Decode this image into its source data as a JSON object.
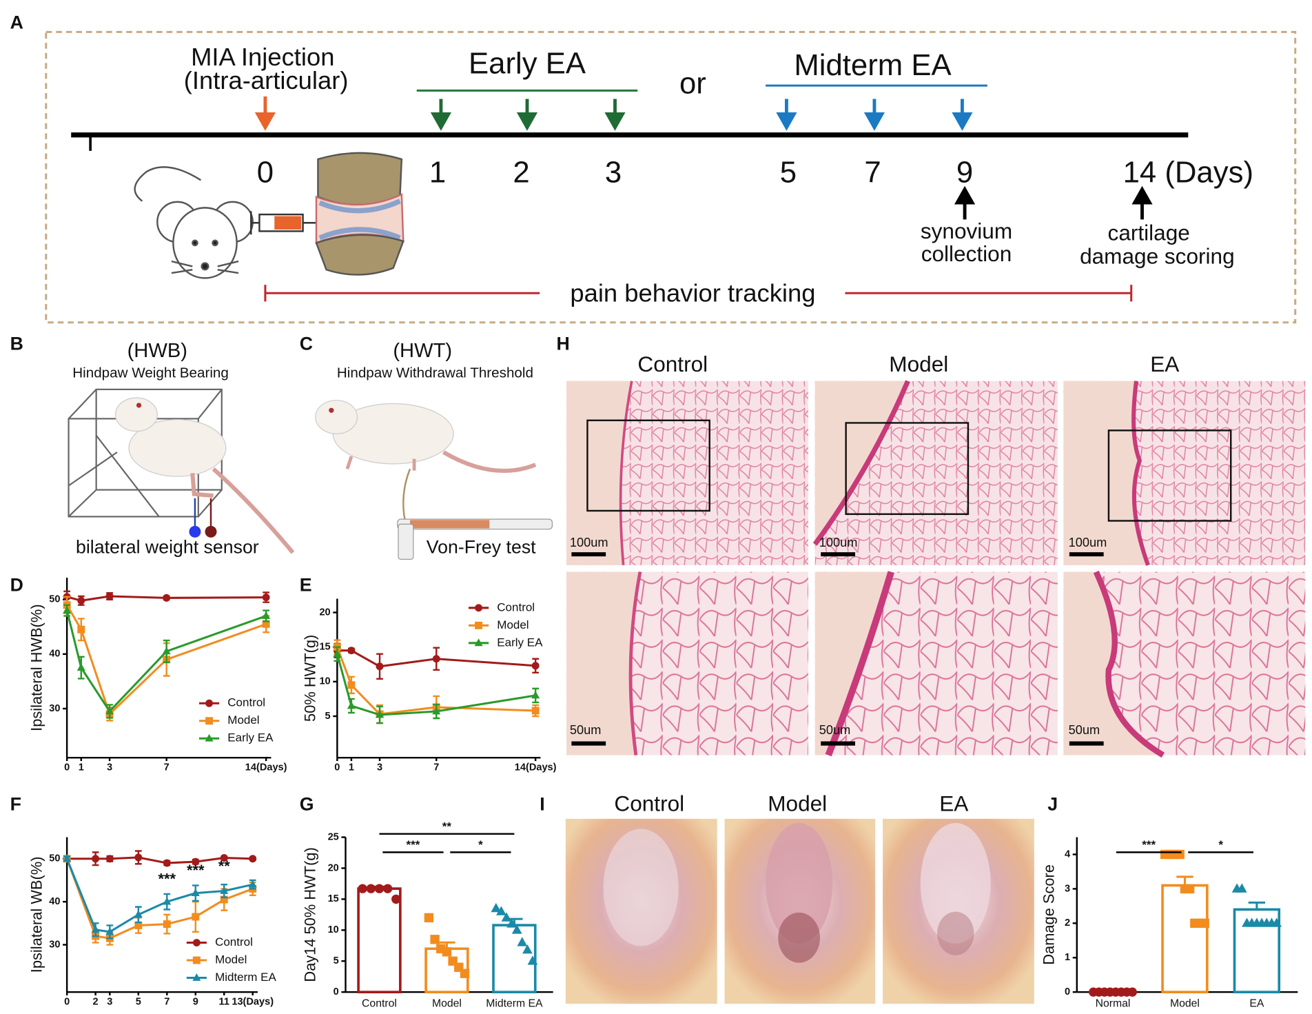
{
  "panel_labels": [
    "A",
    "B",
    "C",
    "D",
    "E",
    "F",
    "G",
    "H",
    "I",
    "J"
  ],
  "timeline": {
    "injection": [
      "MIA Injection",
      "(Intra-articular)"
    ],
    "early": "Early EA",
    "or": "or",
    "midterm": "Midterm EA",
    "days": [
      "0",
      "1",
      "2",
      "3",
      "5",
      "7",
      "9",
      "14 (Days)"
    ],
    "synovium": [
      "synovium",
      "collection"
    ],
    "cartilage": [
      "cartilage",
      "damage scoring"
    ],
    "tracking": "pain behavior tracking"
  },
  "hwb": {
    "abbr": "(HWB)",
    "name": "Hindpaw Weight Bearing",
    "caption": "bilateral weight  sensor"
  },
  "hwt": {
    "abbr": "(HWT)",
    "name": "Hindpaw Withdrawal Threshold",
    "caption": "Von-Frey test"
  },
  "histology": {
    "columns": [
      "Control",
      "Model",
      "EA"
    ],
    "scale_bars": [
      "100um",
      "50um"
    ]
  },
  "photos": {
    "columns": [
      "Control",
      "Model",
      "EA"
    ]
  },
  "chart_data": [
    {
      "type": "line",
      "ylabel": "Ipsilateral HWB(%)",
      "x": [
        0,
        1,
        3,
        7,
        14
      ],
      "xlim": [
        0,
        14
      ],
      "xticks": [
        0,
        1,
        3,
        7,
        {
          "value": 14,
          "label": "14(Days)"
        }
      ],
      "ylim": [
        21,
        54
      ],
      "yticks": [
        30,
        40,
        50
      ],
      "legend": "lower right",
      "series": [
        {
          "name": "Control",
          "color": "#a31a1a",
          "values": [
            50.5,
            49.8,
            50.6,
            50.3,
            50.4
          ],
          "errors": [
            1,
            0.8,
            0.6,
            0.3,
            0.9
          ]
        },
        {
          "name": "Model",
          "color": "#f28c1e",
          "values": [
            49,
            44.5,
            29,
            39,
            45.5
          ],
          "errors": [
            1.5,
            2,
            1.2,
            3,
            1.5
          ]
        },
        {
          "name": "Early EA",
          "color": "#2a9a2a",
          "values": [
            48,
            37.5,
            29.5,
            40.5,
            47
          ],
          "errors": [
            1,
            2,
            1.2,
            2,
            1
          ]
        }
      ]
    },
    {
      "type": "line",
      "ylabel": "50% HWT(g)",
      "x": [
        0,
        1,
        3,
        7,
        14
      ],
      "xlim": [
        0,
        14
      ],
      "xticks": [
        0,
        1,
        3,
        7,
        {
          "value": 14,
          "label": "14(Days)"
        }
      ],
      "ylim": [
        -1,
        22
      ],
      "yticks": [
        5,
        10,
        15,
        20
      ],
      "legend": "upper right",
      "series": [
        {
          "name": "Control",
          "color": "#a31a1a",
          "values": [
            14.5,
            14.5,
            12.2,
            13.3,
            12.3
          ],
          "errors": [
            1,
            0.3,
            1.8,
            1.6,
            1
          ]
        },
        {
          "name": "Model",
          "color": "#f28c1e",
          "values": [
            15,
            9.5,
            5.3,
            6.3,
            5.8
          ],
          "errors": [
            1,
            1.2,
            1.3,
            1.6,
            0.8
          ]
        },
        {
          "name": "Early EA",
          "color": "#2a9a2a",
          "values": [
            14,
            6.5,
            5.2,
            5.7,
            8
          ],
          "errors": [
            1,
            1,
            1.2,
            1,
            1
          ]
        }
      ]
    },
    {
      "type": "line",
      "ylabel": "Ipsilateral WB(%)",
      "x": [
        0,
        2,
        3,
        5,
        7,
        9,
        11,
        13
      ],
      "xlim": [
        0,
        13
      ],
      "xticks": [
        0,
        2,
        3,
        5,
        7,
        9,
        11,
        {
          "value": 13,
          "label": "13(Days)"
        }
      ],
      "ylim": [
        19,
        55
      ],
      "yticks": [
        30,
        40,
        50
      ],
      "legend": "lower right",
      "series": [
        {
          "name": "Control",
          "color": "#a31a1a",
          "values": [
            50,
            50,
            50,
            50.3,
            49,
            49.3,
            50.2,
            50
          ],
          "errors": [
            0.5,
            1.5,
            0.6,
            1.5,
            0.5,
            0.5,
            0.3,
            0.3
          ]
        },
        {
          "name": "Model",
          "color": "#f28c1e",
          "values": [
            50,
            32,
            31.5,
            34.5,
            34.8,
            36.5,
            40.5,
            43
          ],
          "errors": [
            0.5,
            1.5,
            1.5,
            1.8,
            2.2,
            3.5,
            2.5,
            1.5
          ]
        },
        {
          "name": "Midterm EA",
          "color": "#1a8aa8",
          "values": [
            50,
            33.5,
            33,
            37,
            40,
            42,
            42.5,
            44
          ],
          "errors": [
            0.5,
            1.5,
            1.5,
            1.8,
            1.8,
            1.8,
            1.5,
            1
          ]
        }
      ],
      "annotations": [
        {
          "x": 7,
          "y": 45,
          "text": "***"
        },
        {
          "x": 9,
          "y": 47,
          "text": "***"
        },
        {
          "x": 11,
          "y": 48,
          "text": "**"
        }
      ]
    },
    {
      "type": "bar",
      "ylabel": "Day14 50% HWT(g)",
      "categories": [
        "Control",
        "Model",
        "Midterm EA"
      ],
      "values": [
        16.7,
        7,
        10.8
      ],
      "errors": [
        0.3,
        1,
        1
      ],
      "colors": [
        "#a31a1a",
        "#f28c1e",
        "#1a8aa8"
      ],
      "points": [
        [
          16.7,
          16.7,
          16.7,
          16.7,
          15
        ],
        [
          12,
          8.5,
          7,
          6.5,
          5,
          4,
          3
        ],
        [
          13.5,
          13,
          12,
          11,
          10,
          8,
          6.8,
          5
        ]
      ],
      "ylim": [
        0,
        25
      ],
      "yticks": [
        0,
        5,
        10,
        15,
        20,
        25
      ],
      "brackets": [
        {
          "from": 0,
          "to": 1,
          "text": "***"
        },
        {
          "from": 1,
          "to": 2,
          "text": "*"
        },
        {
          "from": 0,
          "to": 2,
          "text": "**"
        }
      ]
    },
    {
      "type": "bar",
      "ylabel": "Damage Score",
      "categories": [
        "Normal",
        "Model",
        "EA"
      ],
      "values": [
        0,
        3.1,
        2.4
      ],
      "errors": [
        0,
        0.25,
        0.2
      ],
      "colors": [
        "#a31a1a",
        "#f28c1e",
        "#1a8aa8"
      ],
      "points": [
        [
          0,
          0,
          0,
          0,
          0,
          0,
          0,
          0
        ],
        [
          4,
          4,
          4,
          4,
          3,
          3,
          2,
          2,
          2
        ],
        [
          3,
          3,
          2,
          2,
          2,
          2,
          2,
          2,
          2
        ]
      ],
      "ylim": [
        0,
        4.5
      ],
      "yticks": [
        0,
        1,
        2,
        3,
        4
      ],
      "brackets": [
        {
          "from": 0,
          "to": 1,
          "text": "***"
        },
        {
          "from": 1,
          "to": 2,
          "text": "*"
        }
      ]
    }
  ]
}
